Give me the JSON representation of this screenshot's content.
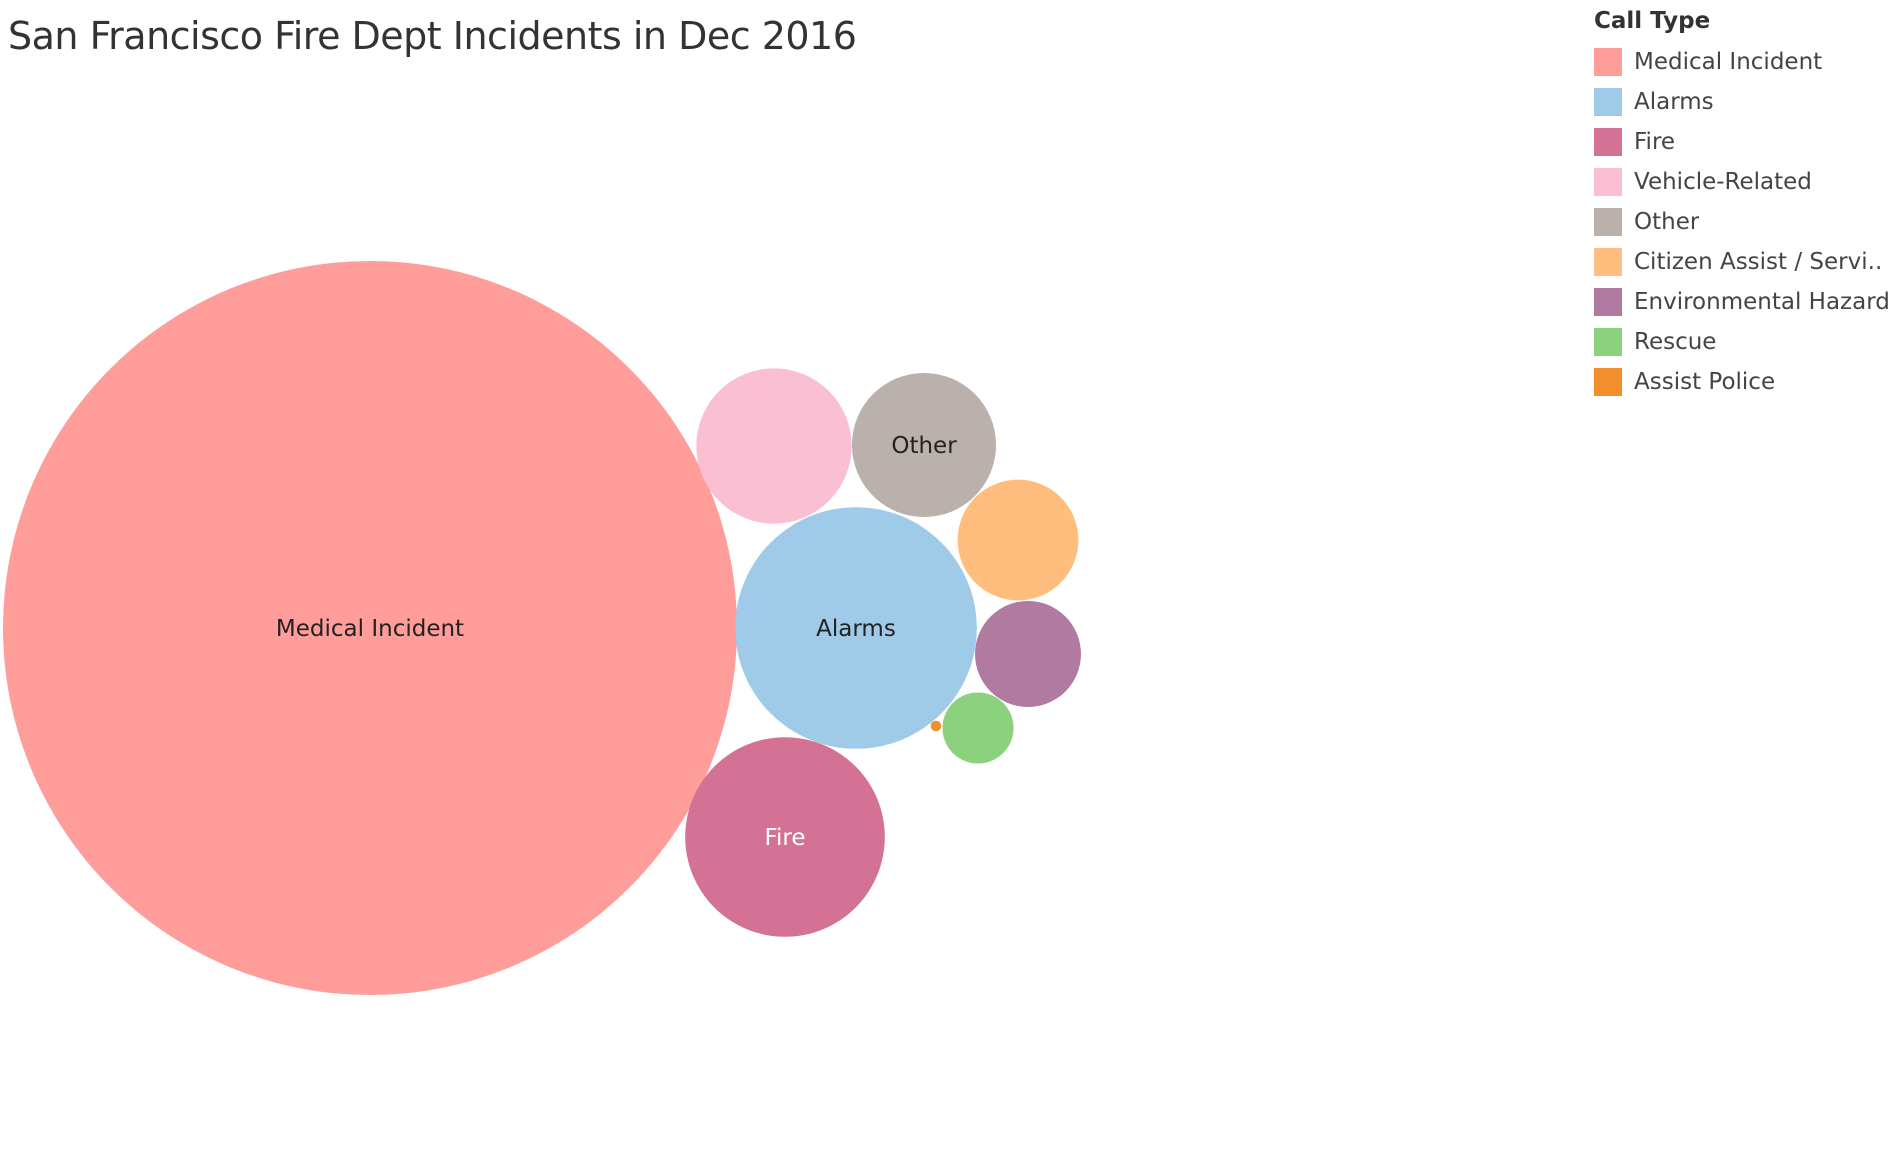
{
  "chart_data": {
    "type": "bubble",
    "title": "San Francisco Fire Dept Incidents in Dec 2016",
    "legend": {
      "title": "Call Type",
      "placement": "top-right"
    },
    "series": [
      {
        "name": "Medical Incident",
        "label": "Medical Incident",
        "value": 9600,
        "color": "#ff9d9a",
        "label_color": "#222222"
      },
      {
        "name": "Alarms",
        "label": "Alarms",
        "value": 1040,
        "color": "#a0cbe8",
        "label_color": "#222222"
      },
      {
        "name": "Fire",
        "label": "Fire",
        "value": 710,
        "color": "#d37295",
        "label_color": "#ffffff"
      },
      {
        "name": "Vehicle-Related",
        "label": "",
        "value": 430,
        "color": "#fabfd2",
        "label_color": "#222222"
      },
      {
        "name": "Other",
        "label": "Other",
        "value": 370,
        "color": "#bab0ac",
        "label_color": "#222222"
      },
      {
        "name": "Citizen Assist / Servi..",
        "label": "",
        "value": 260,
        "color": "#ffbe7d",
        "label_color": "#222222"
      },
      {
        "name": "Environmental Hazard",
        "label": "",
        "value": 200,
        "color": "#b07aa1",
        "label_color": "#222222"
      },
      {
        "name": "Rescue",
        "label": "",
        "value": 90,
        "color": "#8cd17d",
        "label_color": "#222222"
      },
      {
        "name": "Assist Police",
        "label": "",
        "value": 2,
        "color": "#f28e2b",
        "label_color": "#222222"
      }
    ]
  }
}
